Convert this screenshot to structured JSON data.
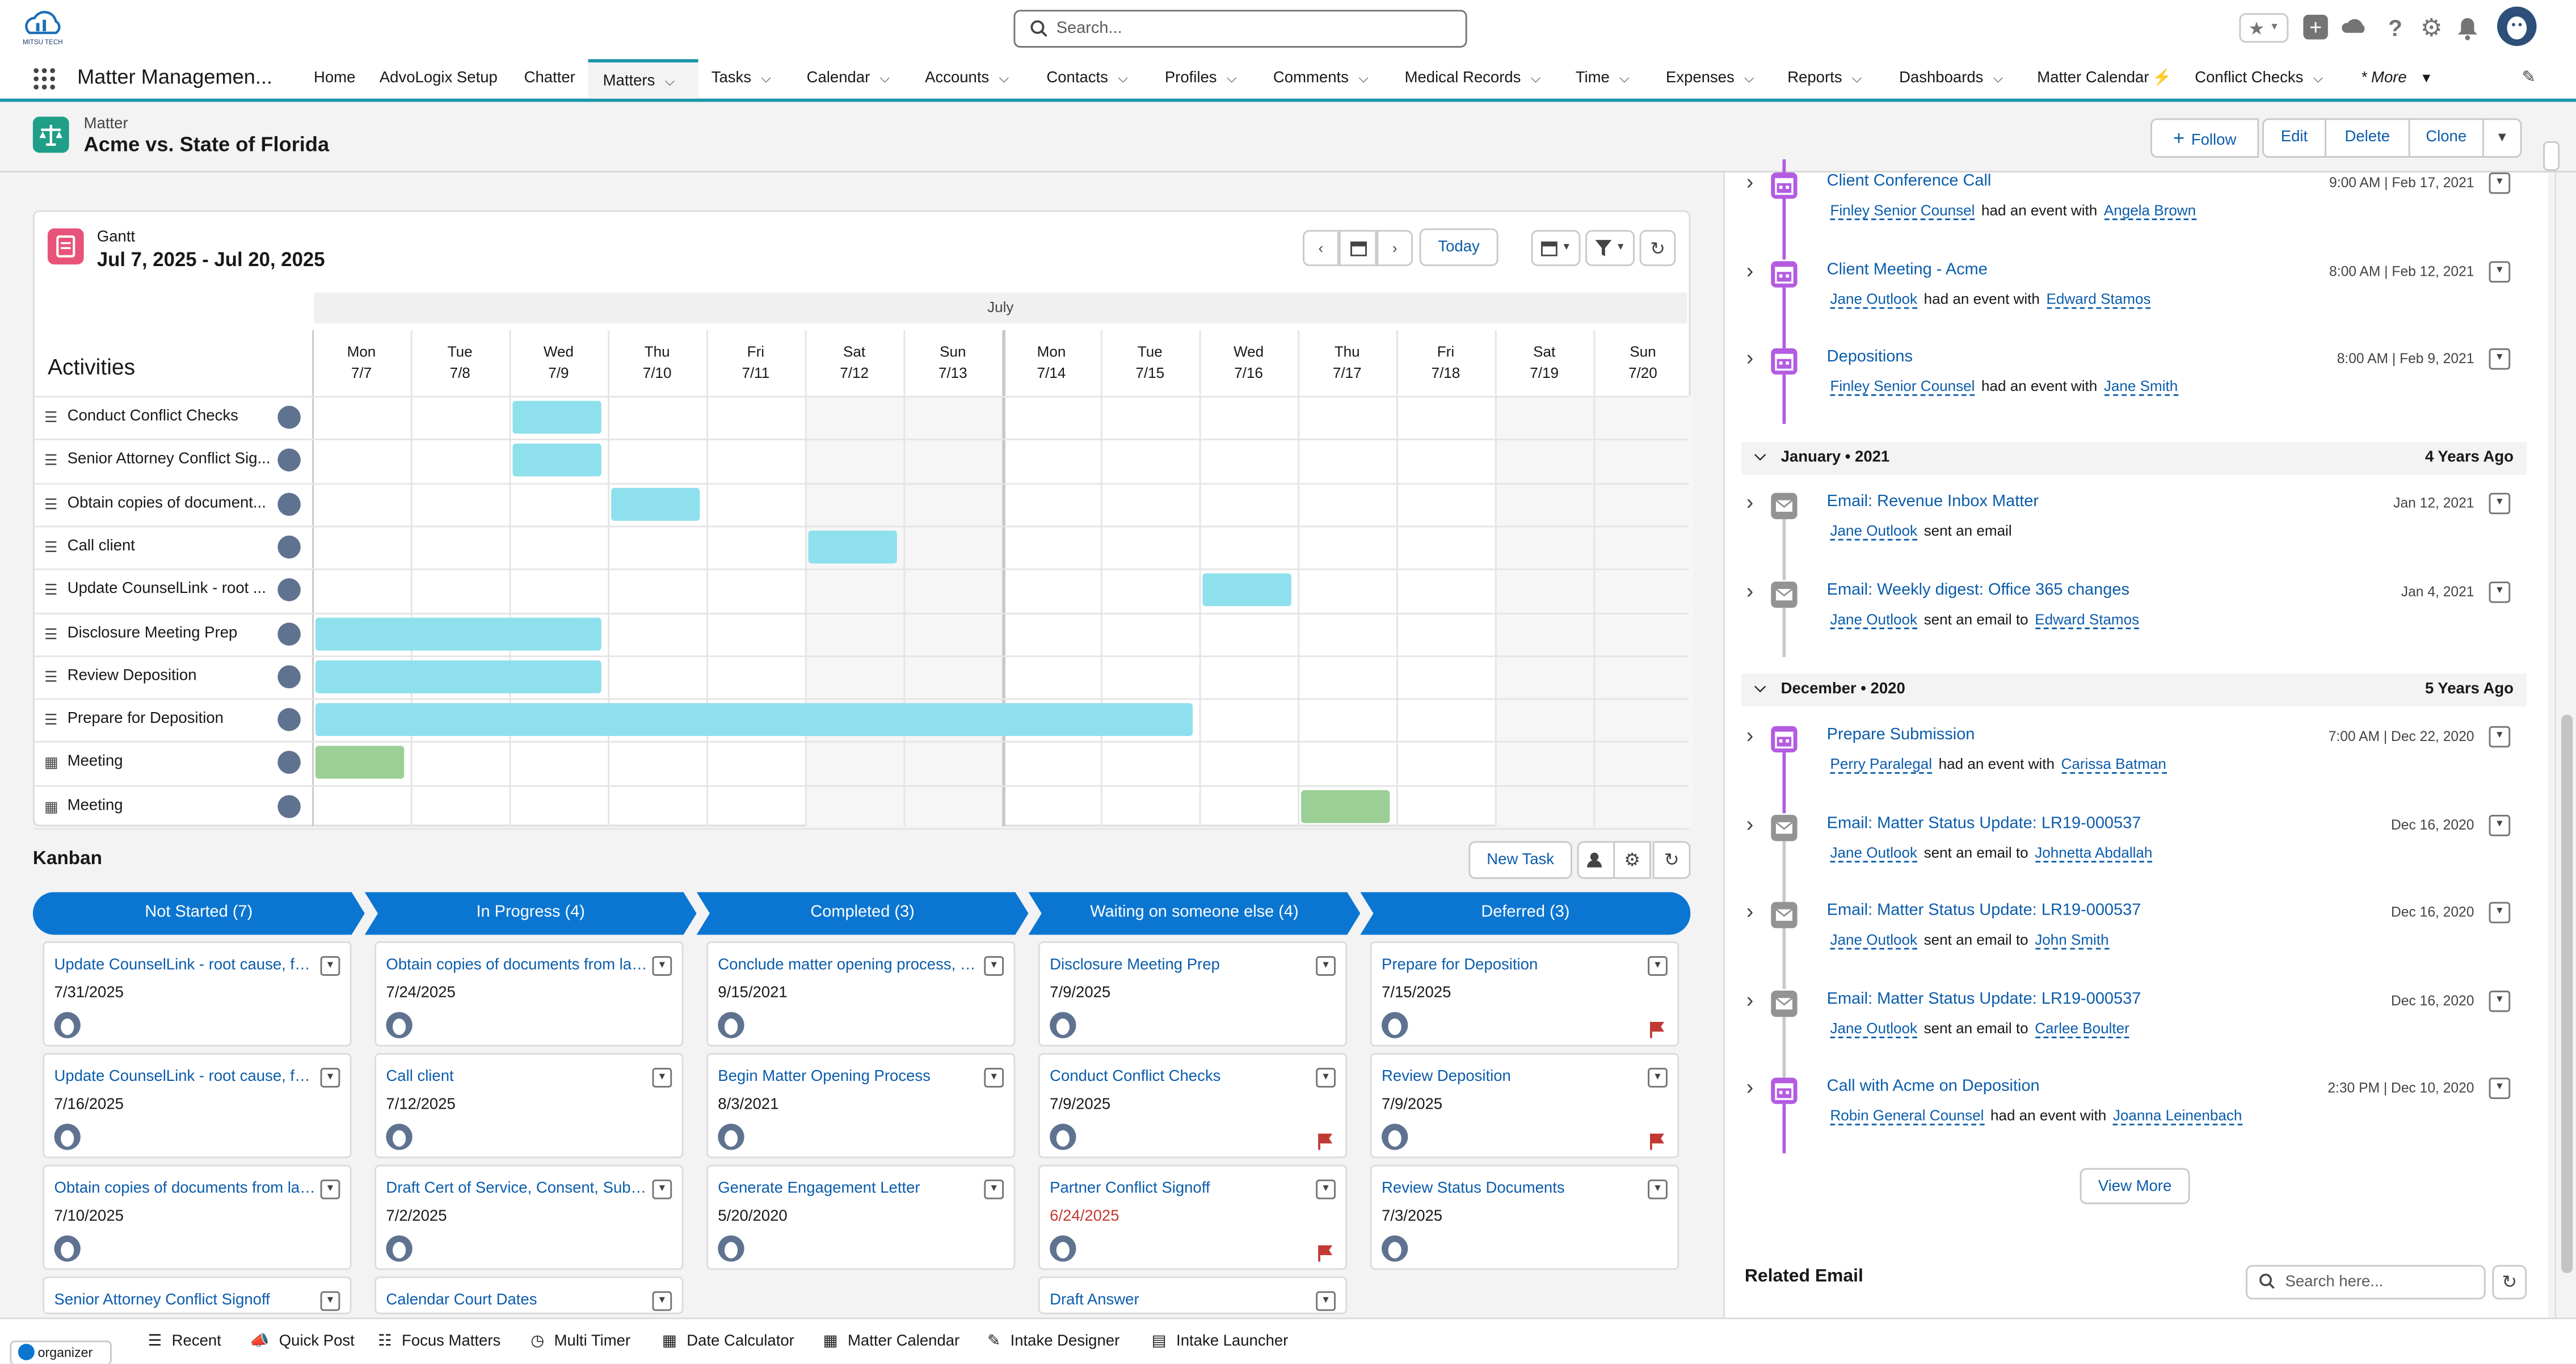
{
  "colors": {
    "brand": "#0b5cab",
    "nav_accent": "#1b96a8",
    "kanban_header": "#0b76d1",
    "gantt_task_bar": "#8ee0ec",
    "gantt_event_bar": "#9ccf95",
    "event_icon": "#b45be1",
    "email_icon": "#939393",
    "flag": "#c23934"
  },
  "header": {
    "search_placeholder": "Search...",
    "logo_text": "MITSU TECH"
  },
  "nav": {
    "app_name": "Matter Managemen...",
    "items": [
      {
        "label": "Home"
      },
      {
        "label": "AdvoLogix Setup"
      },
      {
        "label": "Chatter"
      },
      {
        "label": "Matters"
      },
      {
        "label": "Tasks"
      },
      {
        "label": "Calendar"
      },
      {
        "label": "Accounts"
      },
      {
        "label": "Contacts"
      },
      {
        "label": "Profiles"
      },
      {
        "label": "Comments"
      },
      {
        "label": "Medical Records"
      },
      {
        "label": "Time"
      },
      {
        "label": "Expenses"
      },
      {
        "label": "Reports"
      },
      {
        "label": "Dashboards"
      },
      {
        "label": "Matter Calendar"
      },
      {
        "label": "Conflict Checks"
      },
      {
        "label": "* More"
      }
    ]
  },
  "record": {
    "object_label": "Matter",
    "title": "Acme vs. State of Florida",
    "actions": [
      "Follow",
      "Edit",
      "Delete",
      "Clone"
    ]
  },
  "gantt": {
    "label": "Gantt",
    "range": "Jul 7, 2025 - Jul 20, 2025",
    "today_label": "Today",
    "month_label": "July",
    "activities_label": "Activities",
    "days": [
      {
        "dow": "Mon",
        "date": "7/7"
      },
      {
        "dow": "Tue",
        "date": "7/8"
      },
      {
        "dow": "Wed",
        "date": "7/9"
      },
      {
        "dow": "Thu",
        "date": "7/10"
      },
      {
        "dow": "Fri",
        "date": "7/11"
      },
      {
        "dow": "Sat",
        "date": "7/12"
      },
      {
        "dow": "Sun",
        "date": "7/13"
      },
      {
        "dow": "Mon",
        "date": "7/14"
      },
      {
        "dow": "Tue",
        "date": "7/15"
      },
      {
        "dow": "Wed",
        "date": "7/16"
      },
      {
        "dow": "Thu",
        "date": "7/17"
      },
      {
        "dow": "Fri",
        "date": "7/18"
      },
      {
        "dow": "Sat",
        "date": "7/19"
      },
      {
        "dow": "Sun",
        "date": "7/20"
      }
    ],
    "activities": [
      {
        "name": "Conduct Conflict Checks",
        "type": "task"
      },
      {
        "name": "Senior Attorney Conflict Sig...",
        "type": "task"
      },
      {
        "name": "Obtain copies of document...",
        "type": "task"
      },
      {
        "name": "Call client",
        "type": "task"
      },
      {
        "name": "Update CounselLink - root ...",
        "type": "task"
      },
      {
        "name": "Disclosure Meeting Prep",
        "type": "task"
      },
      {
        "name": "Review Deposition",
        "type": "task"
      },
      {
        "name": "Prepare for Deposition",
        "type": "task"
      },
      {
        "name": "Meeting",
        "type": "event"
      },
      {
        "name": "Meeting",
        "type": "event"
      }
    ]
  },
  "kanban": {
    "title": "Kanban",
    "new_task_label": "New Task",
    "columns": [
      {
        "title": "Not Started (7)",
        "cards": [
          {
            "title": "Update CounselLink - root cause, fact...",
            "date": "7/31/2025",
            "flag": false,
            "overdue": false
          },
          {
            "title": "Update CounselLink - root cause, fact...",
            "date": "7/16/2025",
            "flag": false,
            "overdue": false
          },
          {
            "title": "Obtain copies of documents from lan...",
            "date": "7/10/2025",
            "flag": false,
            "overdue": false
          },
          {
            "title": "Senior Attorney Conflict Signoff",
            "date": "",
            "flag": false,
            "overdue": false
          }
        ]
      },
      {
        "title": "In Progress (4)",
        "cards": [
          {
            "title": "Obtain copies of documents from lan...",
            "date": "7/24/2025",
            "flag": false,
            "overdue": false
          },
          {
            "title": "Call client",
            "date": "7/12/2025",
            "flag": false,
            "overdue": false
          },
          {
            "title": "Draft Cert of Service, Consent, Substi...",
            "date": "7/2/2025",
            "flag": false,
            "overdue": false
          },
          {
            "title": "Calendar Court Dates",
            "date": "",
            "flag": false,
            "overdue": false
          }
        ]
      },
      {
        "title": "Completed (3)",
        "cards": [
          {
            "title": "Conclude matter opening process, up...",
            "date": "9/15/2021",
            "flag": false,
            "overdue": false
          },
          {
            "title": "Begin Matter Opening Process",
            "date": "8/3/2021",
            "flag": false,
            "overdue": false
          },
          {
            "title": "Generate Engagement Letter",
            "date": "5/20/2020",
            "flag": false,
            "overdue": false
          }
        ]
      },
      {
        "title": "Waiting on someone else (4)",
        "cards": [
          {
            "title": "Disclosure Meeting Prep",
            "date": "7/9/2025",
            "flag": false,
            "overdue": false
          },
          {
            "title": "Conduct Conflict Checks",
            "date": "7/9/2025",
            "flag": true,
            "overdue": false
          },
          {
            "title": "Partner Conflict Signoff",
            "date": "6/24/2025",
            "flag": true,
            "overdue": true
          },
          {
            "title": "Draft Answer",
            "date": "",
            "flag": false,
            "overdue": false
          }
        ]
      },
      {
        "title": "Deferred (3)",
        "cards": [
          {
            "title": "Prepare for Deposition",
            "date": "7/15/2025",
            "flag": true,
            "overdue": false
          },
          {
            "title": "Review Deposition",
            "date": "7/9/2025",
            "flag": true,
            "overdue": false
          },
          {
            "title": "Review Status Documents",
            "date": "7/3/2025",
            "flag": false,
            "overdue": false
          }
        ]
      }
    ]
  },
  "timeline": {
    "items_top": [
      {
        "title": "Client Conference Call",
        "date": "9:00 AM | Feb 17, 2021",
        "who": "Finley Senior Counsel",
        "verb": "had an event with",
        "target": "Angela Brown",
        "kind": "event"
      },
      {
        "title": "Client Meeting - Acme",
        "date": "8:00 AM | Feb 12, 2021",
        "who": "Jane Outlook",
        "verb": "had an event with",
        "target": "Edward Stamos",
        "kind": "event"
      },
      {
        "title": "Depositions",
        "date": "8:00 AM | Feb 9, 2021",
        "who": "Finley Senior Counsel",
        "verb": "had an event with",
        "target": "Jane Smith",
        "kind": "event"
      }
    ],
    "section_jan": {
      "label": "January • 2021",
      "ago": "4 Years Ago"
    },
    "items_jan": [
      {
        "title": "Email: Revenue Inbox Matter",
        "date": "Jan 12, 2021",
        "who": "Jane Outlook",
        "verb": "sent an email",
        "target": "",
        "kind": "email"
      },
      {
        "title": "Email: Weekly digest: Office 365 changes",
        "date": "Jan 4, 2021",
        "who": "Jane Outlook",
        "verb": "sent an email to",
        "target": "Edward Stamos",
        "kind": "email"
      }
    ],
    "section_dec": {
      "label": "December • 2020",
      "ago": "5 Years Ago"
    },
    "items_dec": [
      {
        "title": "Prepare Submission",
        "date": "7:00 AM | Dec 22, 2020",
        "who": "Perry Paralegal",
        "verb": "had an event with",
        "target": "Carissa Batman",
        "kind": "event"
      },
      {
        "title": "Email: Matter Status Update: LR19-000537",
        "date": "Dec 16, 2020",
        "who": "Jane Outlook",
        "verb": "sent an email to",
        "target": "Johnetta Abdallah",
        "kind": "email"
      },
      {
        "title": "Email: Matter Status Update: LR19-000537",
        "date": "Dec 16, 2020",
        "who": "Jane Outlook",
        "verb": "sent an email to",
        "target": "John Smith",
        "kind": "email"
      },
      {
        "title": "Email: Matter Status Update: LR19-000537",
        "date": "Dec 16, 2020",
        "who": "Jane Outlook",
        "verb": "sent an email to",
        "target": "Carlee Boulter",
        "kind": "email"
      },
      {
        "title": "Call with Acme on Deposition",
        "date": "2:30 PM | Dec 10, 2020",
        "who": "Robin General Counsel",
        "verb": "had an event with",
        "target": "Joanna Leinenbach",
        "kind": "event"
      }
    ],
    "view_more": "View More"
  },
  "related_email": {
    "title": "Related Email",
    "search_placeholder": "Search here..."
  },
  "utility_bar": {
    "organizer": "organizer",
    "items": [
      "Recent",
      "Quick Post",
      "Focus Matters",
      "Multi Timer",
      "Date Calculator",
      "Matter Calendar",
      "Intake Designer",
      "Intake Launcher"
    ]
  }
}
